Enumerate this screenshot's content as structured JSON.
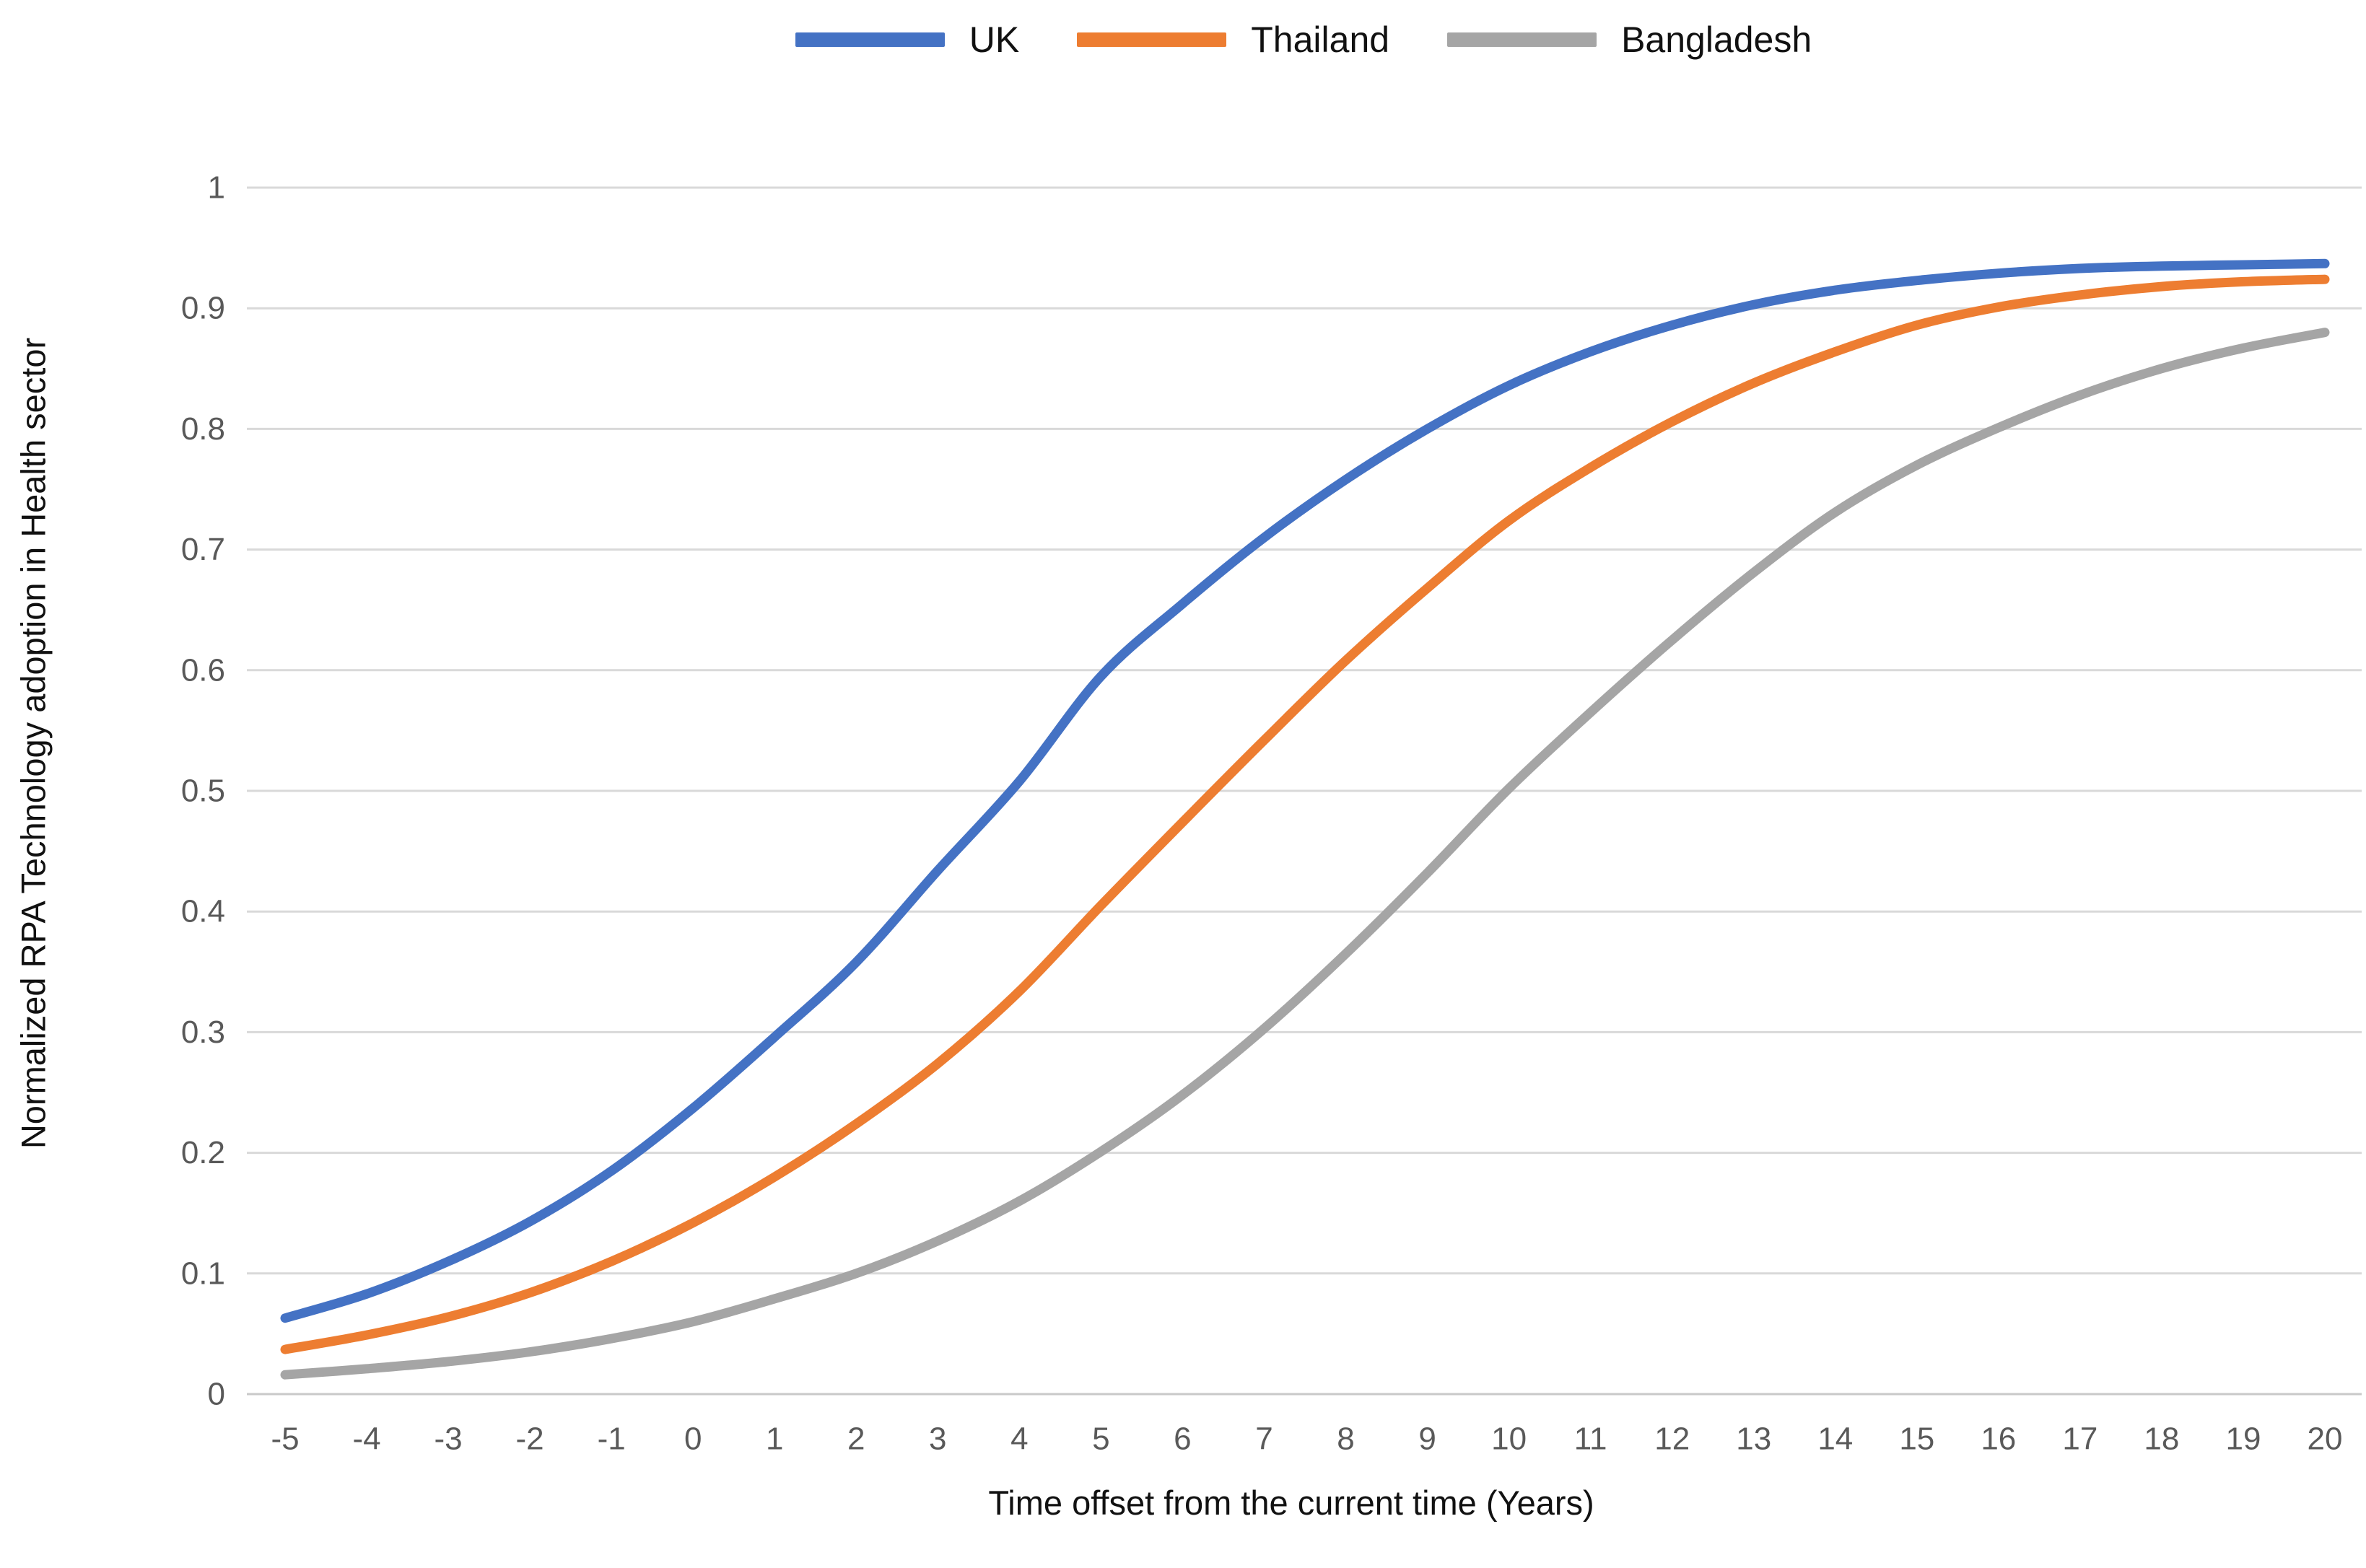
{
  "chart_data": {
    "type": "line",
    "title": "",
    "xlabel": "Time offset from the current time (Years)",
    "ylabel": "Normalized RPA Technology adoption in Health sector",
    "categories": [
      -5,
      -4,
      -3,
      -2,
      -1,
      0,
      1,
      2,
      3,
      4,
      5,
      6,
      7,
      8,
      9,
      10,
      11,
      12,
      13,
      14,
      15,
      16,
      17,
      18,
      19,
      20
    ],
    "ylim": [
      0,
      1
    ],
    "yticks": [
      0,
      0.1,
      0.2,
      0.3,
      0.4,
      0.5,
      0.6,
      0.7,
      0.8,
      0.9,
      1
    ],
    "ytick_labels": [
      "0",
      "0.1",
      "0.2",
      "0.3",
      "0.4",
      "0.5",
      "0.6",
      "0.7",
      "0.8",
      "0.9",
      "1"
    ],
    "grid": "horizontal",
    "legend_position": "top-center",
    "series": [
      {
        "name": "UK",
        "color": "#4472C4",
        "values": [
          0.063,
          0.083,
          0.11,
          0.143,
          0.185,
          0.237,
          0.296,
          0.358,
          0.434,
          0.508,
          0.595,
          0.655,
          0.71,
          0.758,
          0.8,
          0.836,
          0.864,
          0.886,
          0.903,
          0.915,
          0.923,
          0.929,
          0.933,
          0.935,
          0.936,
          0.937
        ]
      },
      {
        "name": "Thailand",
        "color": "#ED7D31",
        "values": [
          0.037,
          0.049,
          0.064,
          0.084,
          0.11,
          0.142,
          0.18,
          0.224,
          0.274,
          0.334,
          0.405,
          0.474,
          0.542,
          0.608,
          0.668,
          0.724,
          0.768,
          0.806,
          0.838,
          0.864,
          0.886,
          0.901,
          0.911,
          0.918,
          0.922,
          0.924
        ]
      },
      {
        "name": "Bangladesh",
        "color": "#A5A5A5",
        "values": [
          0.016,
          0.021,
          0.027,
          0.035,
          0.046,
          0.06,
          0.079,
          0.1,
          0.127,
          0.16,
          0.201,
          0.248,
          0.303,
          0.365,
          0.432,
          0.502,
          0.565,
          0.625,
          0.681,
          0.731,
          0.77,
          0.801,
          0.828,
          0.85,
          0.867,
          0.88
        ]
      }
    ],
    "style": {
      "gridline_color": "#D9D9D9",
      "axis_line_color": "#C9C9C9",
      "tick_text_color": "#595959",
      "line_width": 13
    }
  }
}
